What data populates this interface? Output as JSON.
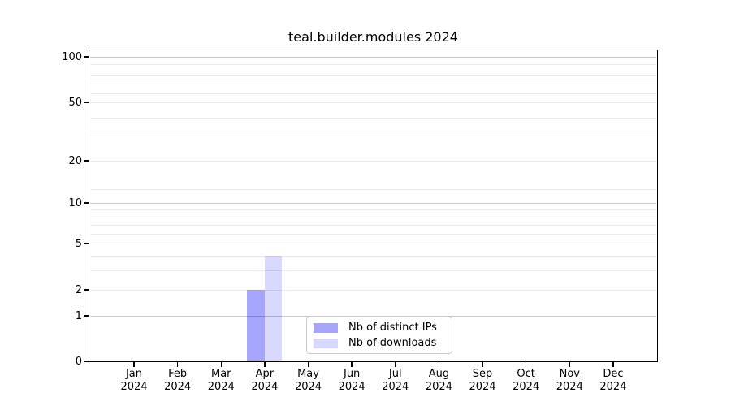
{
  "chart_data": {
    "type": "bar",
    "title": "teal.builder.modules 2024",
    "year_label": "2024",
    "categories": [
      "Jan 2024",
      "Feb 2024",
      "Mar 2024",
      "Apr 2024",
      "May 2024",
      "Jun 2024",
      "Jul 2024",
      "Aug 2024",
      "Sep 2024",
      "Oct 2024",
      "Nov 2024",
      "Dec 2024"
    ],
    "month_labels": [
      "Jan",
      "Feb",
      "Mar",
      "Apr",
      "May",
      "Jun",
      "Jul",
      "Aug",
      "Sep",
      "Oct",
      "Nov",
      "Dec"
    ],
    "series": [
      {
        "name": "Nb of distinct IPs",
        "color": "#0000ff",
        "alpha": 0.35,
        "blended_hex": "#a6a6f7",
        "values": [
          0,
          0,
          0,
          2,
          0,
          0,
          0,
          0,
          0,
          0,
          0,
          0
        ]
      },
      {
        "name": "Nb of downloads",
        "color": "#0000ff",
        "alpha": 0.15,
        "blended_hex": "#dcdcfa",
        "values": [
          0,
          0,
          0,
          4,
          0,
          0,
          0,
          0,
          0,
          0,
          0,
          0
        ]
      }
    ],
    "xlabel": "",
    "ylabel": "",
    "y_scale": "symlog",
    "y_ticks": [
      0,
      1,
      2,
      5,
      10,
      20,
      50,
      100
    ],
    "y_tick_labels": [
      "0",
      "1",
      "2",
      "5",
      "10",
      "20",
      "50",
      "100"
    ],
    "y_minor_gridline_values": [
      2,
      3,
      4,
      5,
      6,
      7,
      8,
      9,
      15,
      20,
      30,
      40,
      50,
      60,
      70,
      80,
      90
    ],
    "y_major_gridline_values": [
      1,
      10,
      100
    ],
    "ylim": [
      0,
      115
    ],
    "grid": "on",
    "legend_position": "lower center",
    "gridline_major_color": "#c8c8c8",
    "gridline_minor_color": "#ececec",
    "spine_color": "#000000"
  }
}
